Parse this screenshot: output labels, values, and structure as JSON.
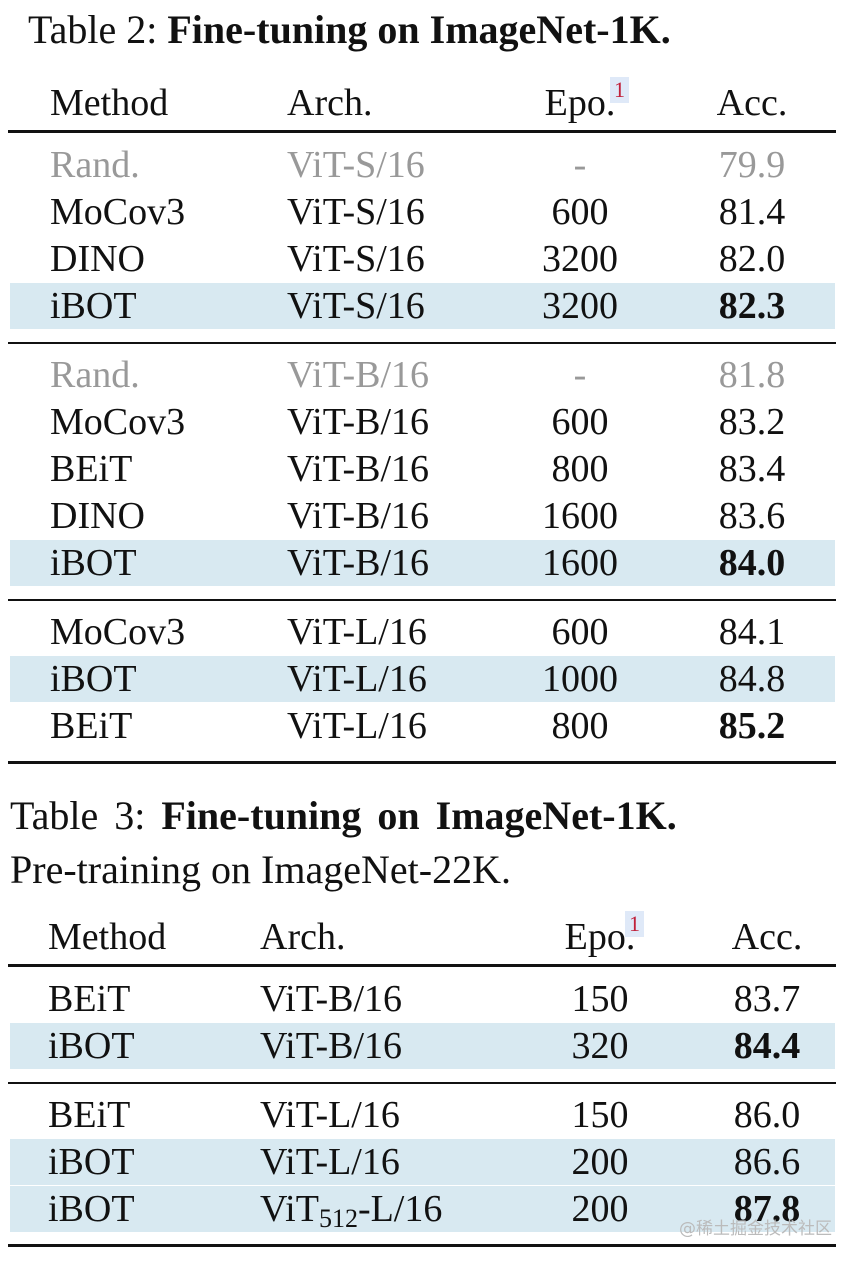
{
  "tables": [
    {
      "caption": {
        "label": "Table 2:",
        "title": "Fine-tuning on ImageNet-1K."
      },
      "header": [
        "Method",
        "Arch.",
        "Epo.",
        "Acc."
      ],
      "footnote_mark": "1",
      "groups": [
        [
          {
            "cells": [
              "Rand.",
              "ViT-S/16",
              "-",
              "79.9"
            ],
            "style": "gray"
          },
          {
            "cells": [
              "MoCov3",
              "ViT-S/16",
              "600",
              "81.4"
            ],
            "style": "plain"
          },
          {
            "cells": [
              "DINO",
              "ViT-S/16",
              "3200",
              "82.0"
            ],
            "style": "plain"
          },
          {
            "cells": [
              "iBOT",
              "ViT-S/16",
              "3200",
              "82.3"
            ],
            "style": "highlight-bold"
          }
        ],
        [
          {
            "cells": [
              "Rand.",
              "ViT-B/16",
              "-",
              "81.8"
            ],
            "style": "gray"
          },
          {
            "cells": [
              "MoCov3",
              "ViT-B/16",
              "600",
              "83.2"
            ],
            "style": "plain"
          },
          {
            "cells": [
              "BEiT",
              "ViT-B/16",
              "800",
              "83.4"
            ],
            "style": "plain"
          },
          {
            "cells": [
              "DINO",
              "ViT-B/16",
              "1600",
              "83.6"
            ],
            "style": "plain"
          },
          {
            "cells": [
              "iBOT",
              "ViT-B/16",
              "1600",
              "84.0"
            ],
            "style": "highlight-bold"
          }
        ],
        [
          {
            "cells": [
              "MoCov3",
              "ViT-L/16",
              "600",
              "84.1"
            ],
            "style": "plain"
          },
          {
            "cells": [
              "iBOT",
              "ViT-L/16",
              "1000",
              "84.8"
            ],
            "style": "highlight"
          },
          {
            "cells": [
              "BEiT",
              "ViT-L/16",
              "800",
              "85.2"
            ],
            "style": "bold"
          }
        ]
      ]
    },
    {
      "caption": {
        "label": "Table 3:",
        "title": "Fine-tuning on ImageNet-1K.",
        "subtitle": "Pre-training on ImageNet-22K."
      },
      "header": [
        "Method",
        "Arch.",
        "Epo.",
        "Acc."
      ],
      "footnote_mark": "1",
      "groups": [
        [
          {
            "cells": [
              "BEiT",
              "ViT-B/16",
              "150",
              "83.7"
            ],
            "style": "plain"
          },
          {
            "cells": [
              "iBOT",
              "ViT-B/16",
              "320",
              "84.4"
            ],
            "style": "highlight-bold"
          }
        ],
        [
          {
            "cells": [
              "BEiT",
              "ViT-L/16",
              "150",
              "86.0"
            ],
            "style": "plain"
          },
          {
            "cells": [
              "iBOT",
              "ViT-L/16",
              "200",
              "86.6"
            ],
            "style": "highlight"
          },
          {
            "cells": [
              "iBOT",
              {
                "base": "ViT",
                "sub": "512",
                "rest": "-L/16"
              },
              "200",
              "87.8"
            ],
            "style": "highlight-bold"
          }
        ]
      ]
    }
  ],
  "watermark": "@稀土掘金技术社区"
}
